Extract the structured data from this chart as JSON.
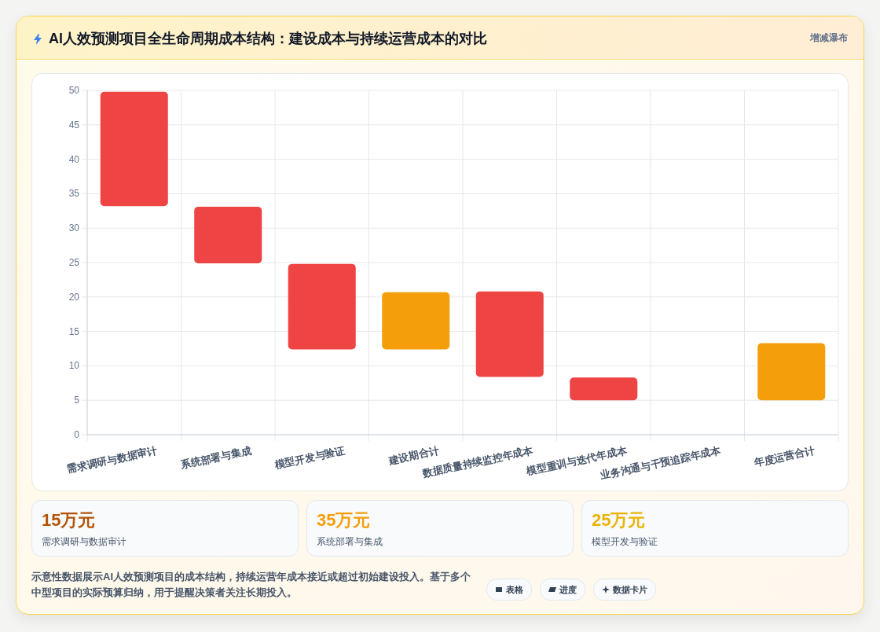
{
  "chart_data": [
    {
      "type": "bar",
      "title": "AI人效预测项目全生命周期成本结构：建设成本与持续运营成本的对比",
      "subtitle": "增减瀑布",
      "categories": [
        "需求调研与数据审计",
        "系统部署与集成",
        "模型开发与验证",
        "建设期合计",
        "数据质量持续监控年成本",
        "模型重训与迭代年成本",
        "业务沟通与干预追踪年成本",
        "年度运营合计"
      ],
      "values": [
        16.6,
        8.2,
        12.4,
        8.3,
        12.4,
        3.3,
        null,
        8.3
      ],
      "base": [
        33.2,
        24.9,
        12.4,
        12.4,
        8.4,
        5.0,
        null,
        5.0
      ],
      "colors": [
        "#ef4444",
        "#ef4444",
        "#ef4444",
        "#f59e0b",
        "#ef4444",
        "#ef4444",
        null,
        "#f59e0b"
      ],
      "ylim": [
        0,
        50
      ],
      "yticks": [
        0,
        5,
        10,
        15,
        20,
        25,
        30,
        35,
        40,
        45,
        50
      ],
      "grid": true
    },
    {
      "type": "other",
      "categories": [
        "需求调研与数据审计",
        "系统部署与集成",
        "模型开发与验证"
      ],
      "value_labels": [
        "15万元",
        "35万元",
        "25万元"
      ],
      "annotations": [
        "示意性数据展示AI人效预测项目的成本结构，持续运营年成本接近或超过初始建设投入。基于多个中型项目的实际预算归纳，用于提醒决策者关注长期投入。",
        "表格",
        "进度",
        "数据卡片"
      ]
    }
  ]
}
